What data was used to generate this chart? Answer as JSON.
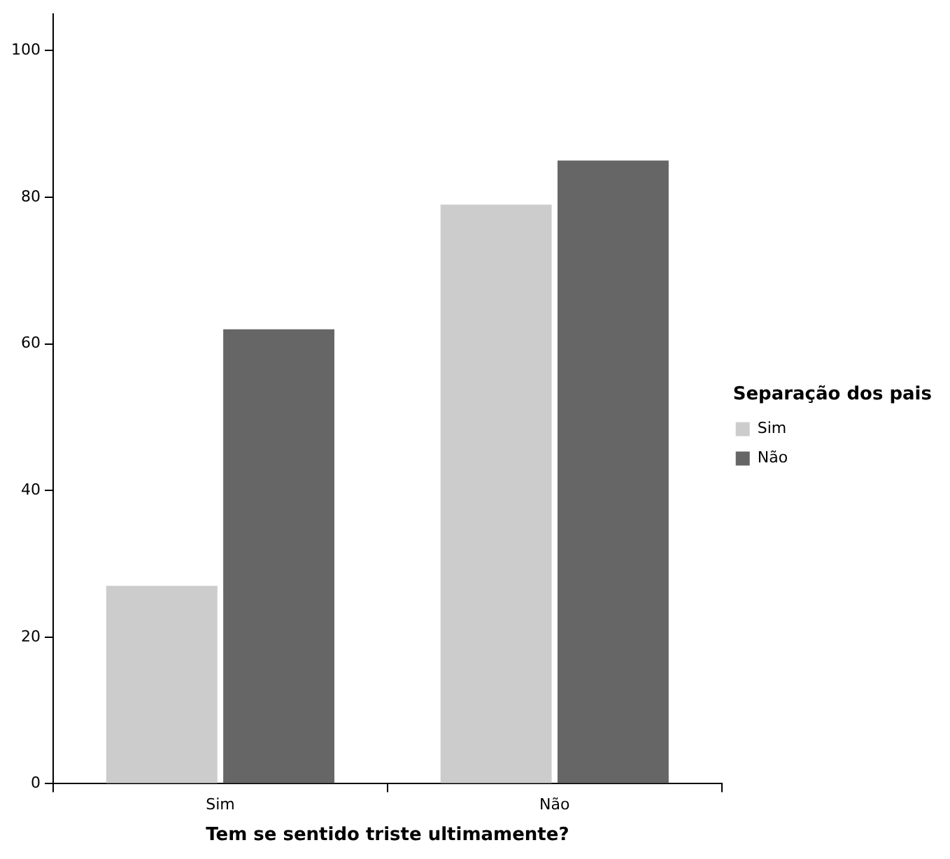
{
  "chart_data": {
    "type": "bar",
    "xlabel": "Tem se sentido triste ultimamente?",
    "legend_title": "Separação dos pais",
    "categories": [
      "Sim",
      "Não"
    ],
    "series": [
      {
        "name": "Sim",
        "color": "#cccccc",
        "values": [
          27,
          79
        ]
      },
      {
        "name": "Não",
        "color": "#666666",
        "values": [
          62,
          85
        ]
      }
    ],
    "ylim": [
      0,
      105
    ],
    "yticks": [
      0,
      20,
      40,
      60,
      80,
      100
    ],
    "grid": false,
    "legend": "right"
  }
}
